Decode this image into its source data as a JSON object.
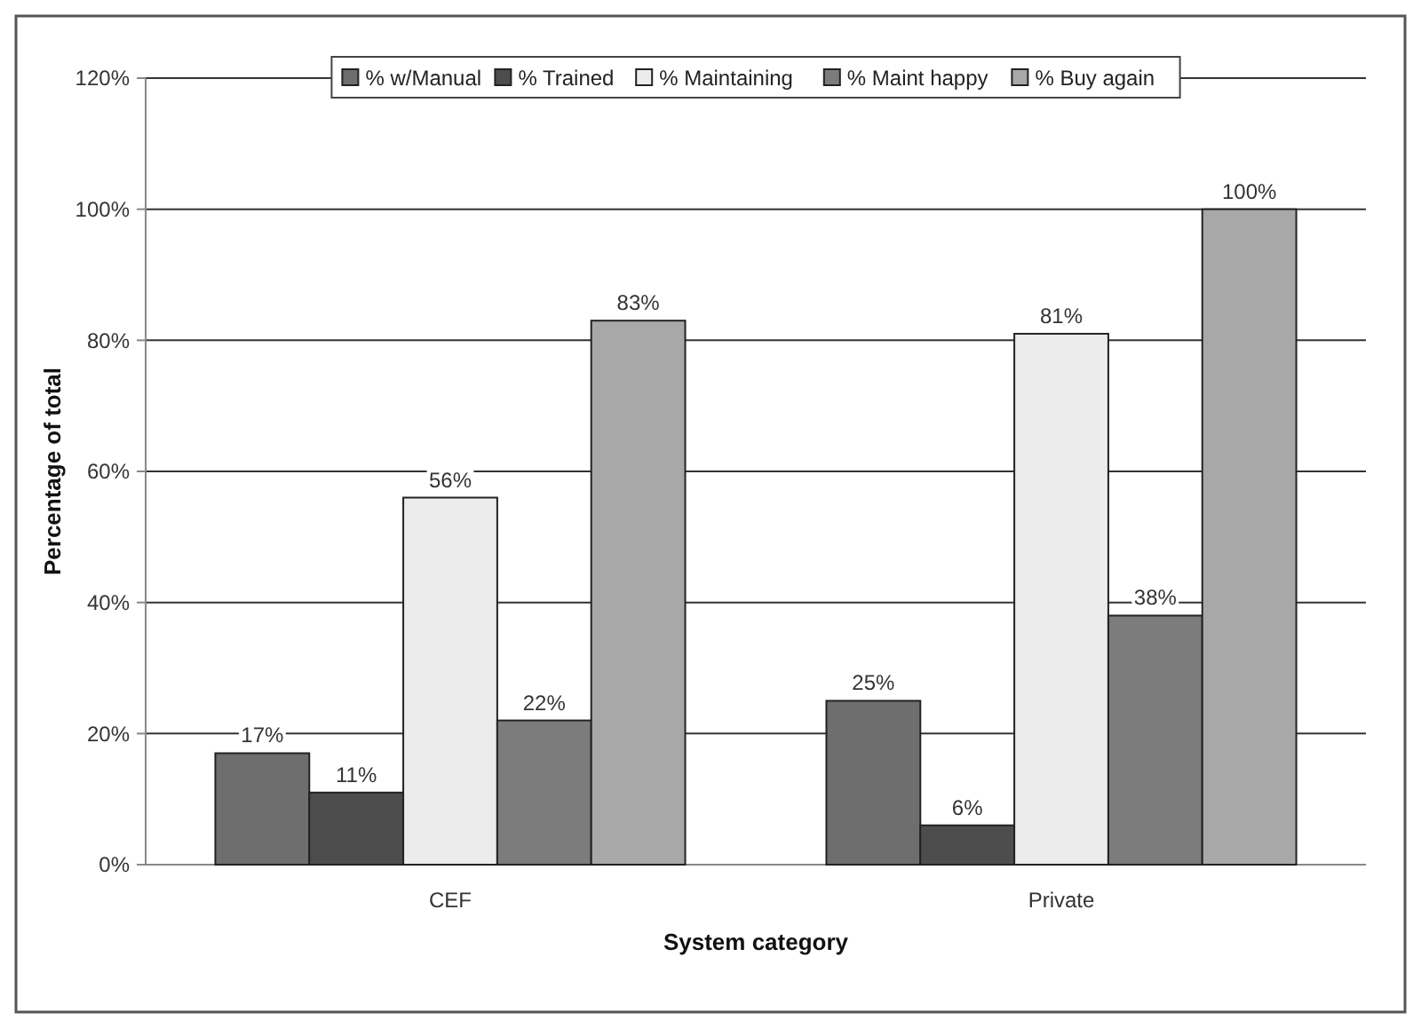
{
  "chart_data": {
    "type": "bar",
    "xlabel": "System category",
    "ylabel": "Percentage of total",
    "categories": [
      "CEF",
      "Private"
    ],
    "series": [
      {
        "name": "% w/Manual",
        "color": "#6e6e6e",
        "values": [
          17,
          25
        ],
        "value_labels": [
          "17%",
          "25%"
        ]
      },
      {
        "name": "% Trained",
        "color": "#4d4d4d",
        "values": [
          11,
          6
        ],
        "value_labels": [
          "11%",
          "6%"
        ]
      },
      {
        "name": "% Maintaining",
        "color": "#ececec",
        "values": [
          56,
          81
        ],
        "value_labels": [
          "56%",
          "81%"
        ]
      },
      {
        "name": "% Maint happy",
        "color": "#7c7c7c",
        "values": [
          22,
          38
        ],
        "value_labels": [
          "22%",
          "38%"
        ]
      },
      {
        "name": "% Buy again",
        "color": "#a8a8a8",
        "values": [
          83,
          100
        ],
        "value_labels": [
          "83%",
          "100%"
        ]
      }
    ],
    "ylim": [
      0,
      120
    ],
    "yticks": [
      {
        "value": 0,
        "label": "0%"
      },
      {
        "value": 20,
        "label": "20%"
      },
      {
        "value": 40,
        "label": "40%"
      },
      {
        "value": 60,
        "label": "60%"
      },
      {
        "value": 80,
        "label": "80%"
      },
      {
        "value": 100,
        "label": "100%"
      },
      {
        "value": 120,
        "label": "120%"
      }
    ],
    "grid": "y",
    "legend": "top"
  }
}
